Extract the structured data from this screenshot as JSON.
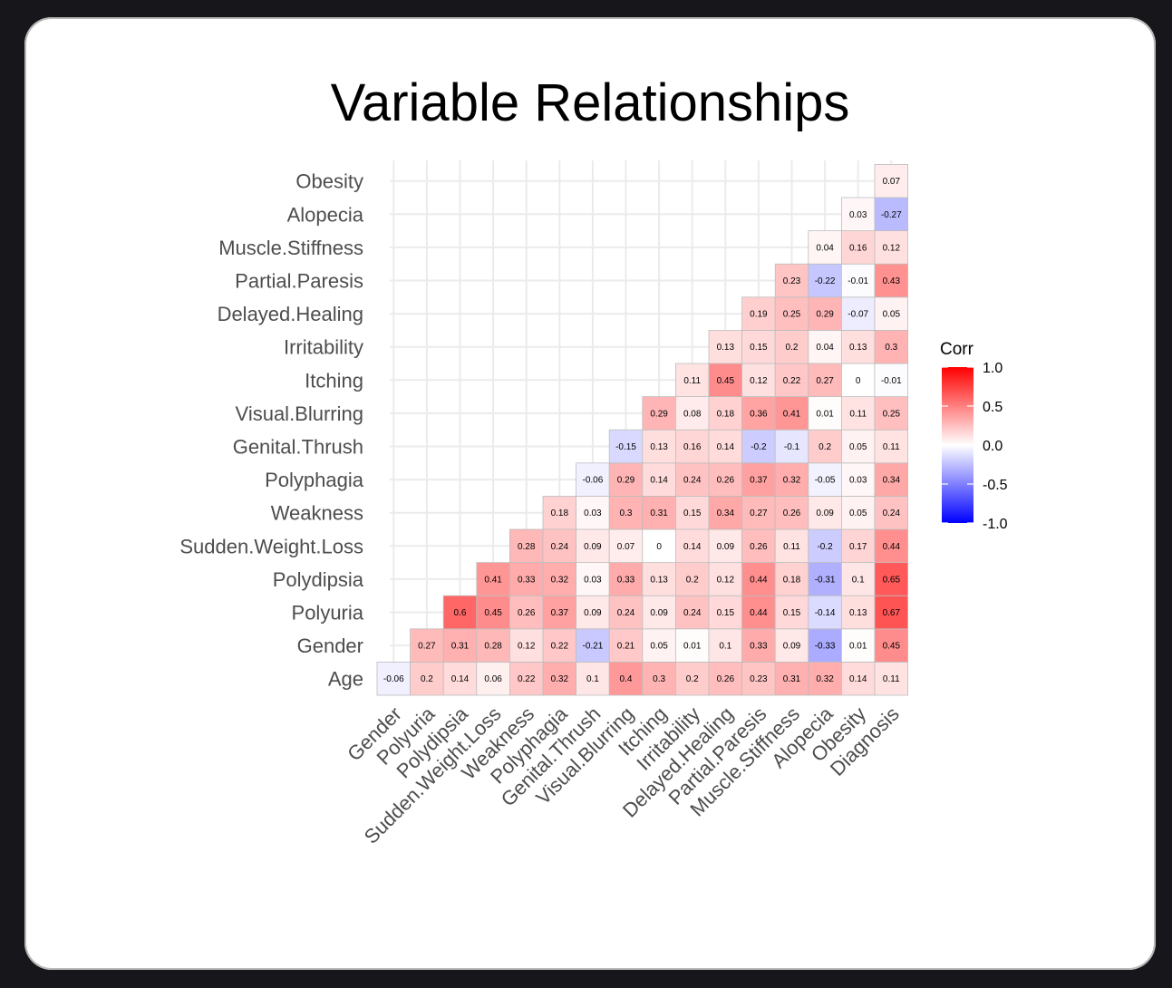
{
  "page": {
    "title": "Variable Relationships"
  },
  "colors": {
    "low": "#0000ff",
    "mid": "#ffffff",
    "high": "#ff0000",
    "grid": "#ebebeb",
    "tile_border": "#bdbdbd"
  },
  "chart_data": {
    "type": "heatmap",
    "title": "Variable Relationships",
    "x_categories": [
      "Gender",
      "Polyuria",
      "Polydipsia",
      "Sudden.Weight.Loss",
      "Weakness",
      "Polyphagia",
      "Genital.Thrush",
      "Visual.Blurring",
      "Itching",
      "Irritability",
      "Delayed.Healing",
      "Partial.Paresis",
      "Muscle.Stiffness",
      "Alopecia",
      "Obesity",
      "Diagnosis"
    ],
    "y_categories": [
      "Age",
      "Gender",
      "Polyuria",
      "Polydipsia",
      "Sudden.Weight.Loss",
      "Weakness",
      "Polyphagia",
      "Genital.Thrush",
      "Visual.Blurring",
      "Itching",
      "Irritability",
      "Delayed.Healing",
      "Partial.Paresis",
      "Muscle.Stiffness",
      "Alopecia",
      "Obesity"
    ],
    "values": [
      [
        -0.06,
        0.2,
        0.14,
        0.06,
        0.22,
        0.32,
        0.1,
        0.4,
        0.3,
        0.2,
        0.26,
        0.23,
        0.31,
        0.32,
        0.14,
        0.11
      ],
      [
        null,
        0.27,
        0.31,
        0.28,
        0.12,
        0.22,
        -0.21,
        0.21,
        0.05,
        0.01,
        0.1,
        0.33,
        0.09,
        -0.33,
        0.01,
        0.45
      ],
      [
        null,
        null,
        0.6,
        0.45,
        0.26,
        0.37,
        0.09,
        0.24,
        0.09,
        0.24,
        0.15,
        0.44,
        0.15,
        -0.14,
        0.13,
        0.67
      ],
      [
        null,
        null,
        null,
        0.41,
        0.33,
        0.32,
        0.03,
        0.33,
        0.13,
        0.2,
        0.12,
        0.44,
        0.18,
        -0.31,
        0.1,
        0.65
      ],
      [
        null,
        null,
        null,
        null,
        0.28,
        0.24,
        0.09,
        0.07,
        0,
        0.14,
        0.09,
        0.26,
        0.11,
        -0.2,
        0.17,
        0.44
      ],
      [
        null,
        null,
        null,
        null,
        null,
        0.18,
        0.03,
        0.3,
        0.31,
        0.15,
        0.34,
        0.27,
        0.26,
        0.09,
        0.05,
        0.24
      ],
      [
        null,
        null,
        null,
        null,
        null,
        null,
        -0.06,
        0.29,
        0.14,
        0.24,
        0.26,
        0.37,
        0.32,
        -0.05,
        0.03,
        0.34
      ],
      [
        null,
        null,
        null,
        null,
        null,
        null,
        null,
        -0.15,
        0.13,
        0.16,
        0.14,
        -0.2,
        -0.1,
        0.2,
        0.05,
        0.11
      ],
      [
        null,
        null,
        null,
        null,
        null,
        null,
        null,
        null,
        0.29,
        0.08,
        0.18,
        0.36,
        0.41,
        0.01,
        0.11,
        0.25
      ],
      [
        null,
        null,
        null,
        null,
        null,
        null,
        null,
        null,
        null,
        0.11,
        0.45,
        0.12,
        0.22,
        0.27,
        0,
        -0.01
      ],
      [
        null,
        null,
        null,
        null,
        null,
        null,
        null,
        null,
        null,
        null,
        0.13,
        0.15,
        0.2,
        0.04,
        0.13,
        0.3
      ],
      [
        null,
        null,
        null,
        null,
        null,
        null,
        null,
        null,
        null,
        null,
        null,
        0.19,
        0.25,
        0.29,
        -0.07,
        0.05
      ],
      [
        null,
        null,
        null,
        null,
        null,
        null,
        null,
        null,
        null,
        null,
        null,
        null,
        0.23,
        -0.22,
        -0.01,
        0.43
      ],
      [
        null,
        null,
        null,
        null,
        null,
        null,
        null,
        null,
        null,
        null,
        null,
        null,
        null,
        0.04,
        0.16,
        0.12
      ],
      [
        null,
        null,
        null,
        null,
        null,
        null,
        null,
        null,
        null,
        null,
        null,
        null,
        null,
        null,
        0.03,
        -0.27
      ],
      [
        null,
        null,
        null,
        null,
        null,
        null,
        null,
        null,
        null,
        null,
        null,
        null,
        null,
        null,
        null,
        0.07
      ]
    ],
    "legend": {
      "title": "Corr",
      "position": "right",
      "range": [
        -1.0,
        1.0
      ],
      "ticks": [
        1.0,
        0.5,
        0.0,
        -0.5,
        -1.0
      ],
      "tick_labels": [
        "1.0",
        "0.5",
        "0.0",
        "-0.5",
        "-1.0"
      ]
    },
    "grid": true
  }
}
